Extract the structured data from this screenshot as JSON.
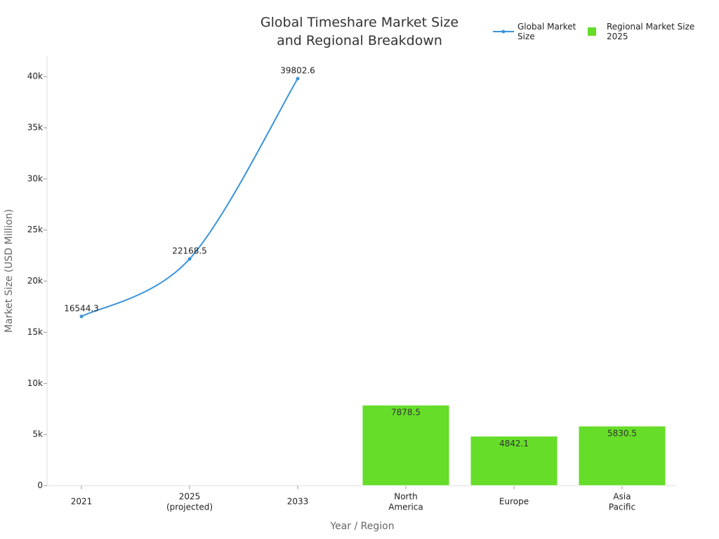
{
  "chart_data": {
    "type": "bar-line",
    "title": "Global Timeshare Market Size and Regional Breakdown",
    "x_label": "Year / Region",
    "y_label": "Market Size (USD Million)",
    "categories": [
      "2021",
      "2025 (projected)",
      "2033",
      "North America",
      "Europe",
      "Asia Pacific"
    ],
    "series": [
      {
        "name": "Global Market Size",
        "type": "line",
        "color": "#3a94dc",
        "values": [
          16544.3,
          22168.5,
          39802.6,
          null,
          null,
          null
        ]
      },
      {
        "name": "Regional Market Size 2025",
        "type": "bar",
        "color": "#66dd29",
        "values": [
          null,
          null,
          null,
          7878.5,
          4842.1,
          5830.5
        ]
      }
    ],
    "ylim": [
      0,
      42000
    ],
    "yticks": [
      0,
      {
        "value": 5000,
        "label": "5k"
      },
      {
        "value": 10000,
        "label": "10k"
      },
      {
        "value": 15000,
        "label": "15k"
      },
      {
        "value": 20000,
        "label": "20k"
      },
      {
        "value": 25000,
        "label": "25k"
      },
      {
        "value": 30000,
        "label": "30k"
      },
      {
        "value": 35000,
        "label": "35k"
      },
      {
        "value": 40000,
        "label": "40k"
      }
    ],
    "legend": "top-right"
  }
}
